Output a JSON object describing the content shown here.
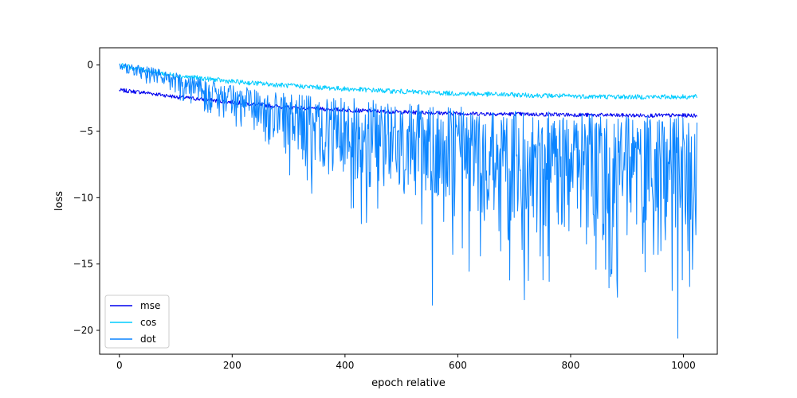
{
  "chart_data": {
    "type": "line",
    "title": "",
    "xlabel": "epoch relative",
    "ylabel": "loss",
    "xlim": [
      -35,
      1060
    ],
    "ylim": [
      -21.8,
      1.3
    ],
    "xticks": [
      0,
      200,
      400,
      600,
      800,
      1000
    ],
    "yticks": [
      0,
      -5,
      -10,
      -15,
      -20
    ],
    "grid": false,
    "legend_position": "lower-left",
    "n_points": 1025,
    "series": [
      {
        "name": "mse",
        "color": "#0000ee",
        "trend_x": [
          0,
          50,
          100,
          200,
          300,
          400,
          500,
          600,
          700,
          800,
          900,
          1024
        ],
        "trend_y": [
          -1.9,
          -2.1,
          -2.4,
          -2.8,
          -3.2,
          -3.4,
          -3.55,
          -3.65,
          -3.7,
          -3.75,
          -3.8,
          -3.8
        ],
        "noise_amplitude": 0.15
      },
      {
        "name": "cos",
        "color": "#00ccff",
        "trend_x": [
          0,
          50,
          100,
          200,
          300,
          400,
          500,
          600,
          700,
          800,
          900,
          1024
        ],
        "trend_y": [
          0.0,
          -0.45,
          -0.8,
          -1.25,
          -1.55,
          -1.8,
          -2.0,
          -2.15,
          -2.25,
          -2.35,
          -2.4,
          -2.4
        ],
        "noise_amplitude": 0.18
      },
      {
        "name": "dot",
        "color": "#0a84ff",
        "trend_x": [
          0,
          50,
          100,
          200,
          300,
          400,
          500,
          600,
          700,
          800,
          900,
          1024
        ],
        "trend_y": [
          0.0,
          -0.5,
          -1.1,
          -2.5,
          -3.5,
          -4.2,
          -4.9,
          -5.5,
          -5.9,
          -6.1,
          -6.3,
          -6.4
        ],
        "spikes": [
          {
            "x": 330,
            "y": -7.6
          },
          {
            "x": 355,
            "y": -6.3
          },
          {
            "x": 410,
            "y": -6.2
          },
          {
            "x": 432,
            "y": -7.0
          },
          {
            "x": 448,
            "y": -6.6
          },
          {
            "x": 458,
            "y": -10.8
          },
          {
            "x": 478,
            "y": -8.2
          },
          {
            "x": 512,
            "y": -9.0
          },
          {
            "x": 530,
            "y": -8.0
          },
          {
            "x": 555,
            "y": -18.1
          },
          {
            "x": 575,
            "y": -11.8
          },
          {
            "x": 590,
            "y": -10.5
          },
          {
            "x": 608,
            "y": -13.8
          },
          {
            "x": 622,
            "y": -11.0
          },
          {
            "x": 640,
            "y": -14.4
          },
          {
            "x": 655,
            "y": -10.2
          },
          {
            "x": 673,
            "y": -12.5
          },
          {
            "x": 690,
            "y": -13.2
          },
          {
            "x": 706,
            "y": -11.0
          },
          {
            "x": 718,
            "y": -17.7
          },
          {
            "x": 740,
            "y": -12.6
          },
          {
            "x": 760,
            "y": -14.4
          },
          {
            "x": 778,
            "y": -12.0
          },
          {
            "x": 797,
            "y": -12.5
          },
          {
            "x": 812,
            "y": -10.8
          },
          {
            "x": 828,
            "y": -13.5
          },
          {
            "x": 845,
            "y": -15.4
          },
          {
            "x": 858,
            "y": -12.0
          },
          {
            "x": 868,
            "y": -16.8
          },
          {
            "x": 876,
            "y": -12.2
          },
          {
            "x": 883,
            "y": -17.5
          },
          {
            "x": 900,
            "y": -12.8
          },
          {
            "x": 917,
            "y": -12.0
          },
          {
            "x": 932,
            "y": -15.6
          },
          {
            "x": 948,
            "y": -11.0
          },
          {
            "x": 960,
            "y": -14.0
          },
          {
            "x": 980,
            "y": -17.0
          },
          {
            "x": 990,
            "y": -20.6
          },
          {
            "x": 998,
            "y": -16.2
          },
          {
            "x": 1008,
            "y": -14.0
          },
          {
            "x": 1016,
            "y": -15.4
          },
          {
            "x": 1022,
            "y": -12.8
          }
        ]
      }
    ]
  }
}
